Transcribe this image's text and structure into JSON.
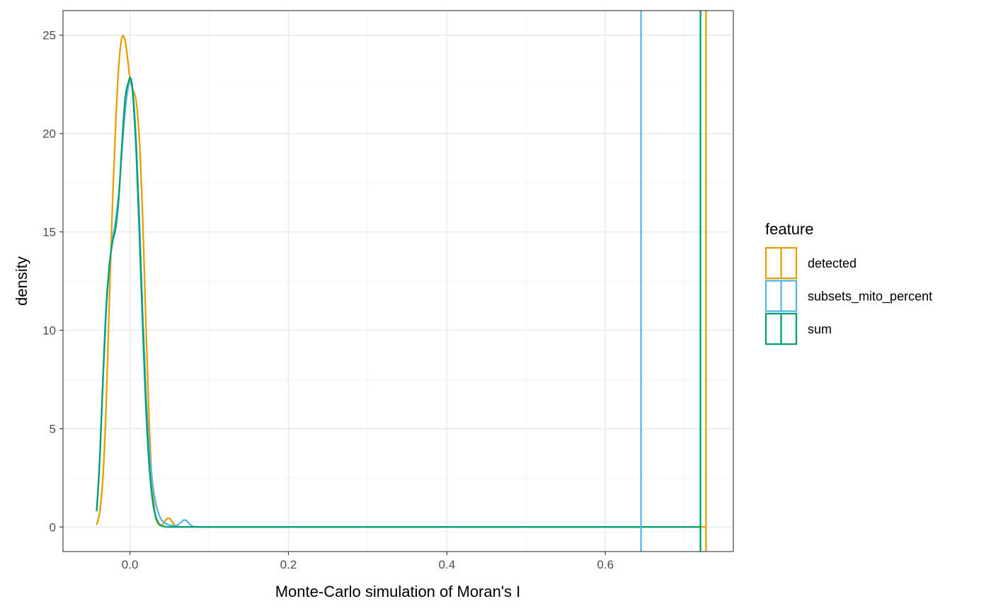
{
  "chart_data": {
    "type": "line",
    "title": "",
    "xlabel": "Monte-Carlo simulation of Moran's I",
    "ylabel": "density",
    "xlim": [
      -0.0845,
      0.7615
    ],
    "ylim": [
      -1.25,
      26.25
    ],
    "x_ticks": [
      0.0,
      0.2,
      0.4,
      0.6
    ],
    "x_tick_labels": [
      "0.0",
      "0.2",
      "0.4",
      "0.6"
    ],
    "y_ticks": [
      0,
      5,
      10,
      15,
      20,
      25
    ],
    "y_tick_labels": [
      "0",
      "5",
      "10",
      "15",
      "20",
      "25"
    ],
    "grid": true,
    "legend": {
      "title": "feature",
      "position": "right"
    },
    "series": [
      {
        "name": "detected",
        "color": "#E69F00",
        "x": [
          -0.042,
          -0.038,
          -0.034,
          -0.03,
          -0.026,
          -0.022,
          -0.018,
          -0.014,
          -0.01,
          -0.006,
          -0.003,
          0.0,
          0.004,
          0.008,
          0.012,
          0.016,
          0.02,
          0.024,
          0.028,
          0.032,
          0.036,
          0.04,
          0.044,
          0.048,
          0.052,
          0.056,
          0.06,
          0.065,
          0.07,
          0.08,
          0.1,
          0.2,
          0.3,
          0.4,
          0.5,
          0.6,
          0.7,
          0.727
        ],
        "y": [
          0.1,
          0.8,
          2.6,
          6.2,
          11.5,
          16.5,
          20.5,
          23.5,
          24.9,
          24.7,
          23.8,
          22.8,
          22.2,
          21.6,
          19.6,
          15.8,
          10.5,
          5.6,
          2.2,
          0.6,
          0.15,
          0.08,
          0.3,
          0.45,
          0.35,
          0.1,
          0.02,
          0.0,
          0.0,
          0.0,
          0.0,
          0.0,
          0.0,
          0.0,
          0.0,
          0.0,
          0.0,
          0.0
        ],
        "observed": 0.727
      },
      {
        "name": "subsets_mito_percent",
        "color": "#56B4E9",
        "x": [
          -0.042,
          -0.038,
          -0.034,
          -0.03,
          -0.026,
          -0.022,
          -0.018,
          -0.014,
          -0.01,
          -0.006,
          -0.002,
          0.001,
          0.004,
          0.008,
          0.012,
          0.016,
          0.02,
          0.024,
          0.028,
          0.032,
          0.036,
          0.04,
          0.044,
          0.048,
          0.052,
          0.056,
          0.06,
          0.064,
          0.068,
          0.072,
          0.076,
          0.08,
          0.09,
          0.1,
          0.2,
          0.3,
          0.4,
          0.5,
          0.6,
          0.645
        ],
        "y": [
          0.8,
          3.5,
          7.5,
          11.0,
          13.2,
          14.6,
          15.6,
          17.0,
          19.2,
          21.2,
          22.4,
          22.8,
          22.0,
          19.5,
          15.5,
          11.0,
          7.0,
          4.2,
          2.4,
          1.3,
          0.7,
          0.35,
          0.2,
          0.12,
          0.08,
          0.06,
          0.1,
          0.22,
          0.35,
          0.3,
          0.12,
          0.03,
          0.0,
          0.0,
          0.0,
          0.0,
          0.0,
          0.0,
          0.0,
          0.0
        ],
        "observed": 0.645
      },
      {
        "name": "sum",
        "color": "#009E73",
        "x": [
          -0.042,
          -0.038,
          -0.034,
          -0.03,
          -0.026,
          -0.022,
          -0.018,
          -0.014,
          -0.01,
          -0.006,
          -0.002,
          0.001,
          0.004,
          0.008,
          0.012,
          0.016,
          0.02,
          0.024,
          0.028,
          0.032,
          0.036,
          0.04,
          0.044,
          0.048,
          0.052,
          0.056,
          0.06,
          0.07,
          0.08,
          0.1,
          0.2,
          0.3,
          0.4,
          0.5,
          0.6,
          0.7,
          0.72
        ],
        "y": [
          0.8,
          3.6,
          7.6,
          11.2,
          13.3,
          14.5,
          15.2,
          16.8,
          19.5,
          21.8,
          22.6,
          22.8,
          21.8,
          19.0,
          14.8,
          10.3,
          6.2,
          3.3,
          1.5,
          0.6,
          0.2,
          0.06,
          0.02,
          0.0,
          0.0,
          0.0,
          0.0,
          0.0,
          0.0,
          0.0,
          0.0,
          0.0,
          0.0,
          0.0,
          0.0,
          0.0,
          0.0
        ],
        "observed": 0.72
      }
    ]
  }
}
